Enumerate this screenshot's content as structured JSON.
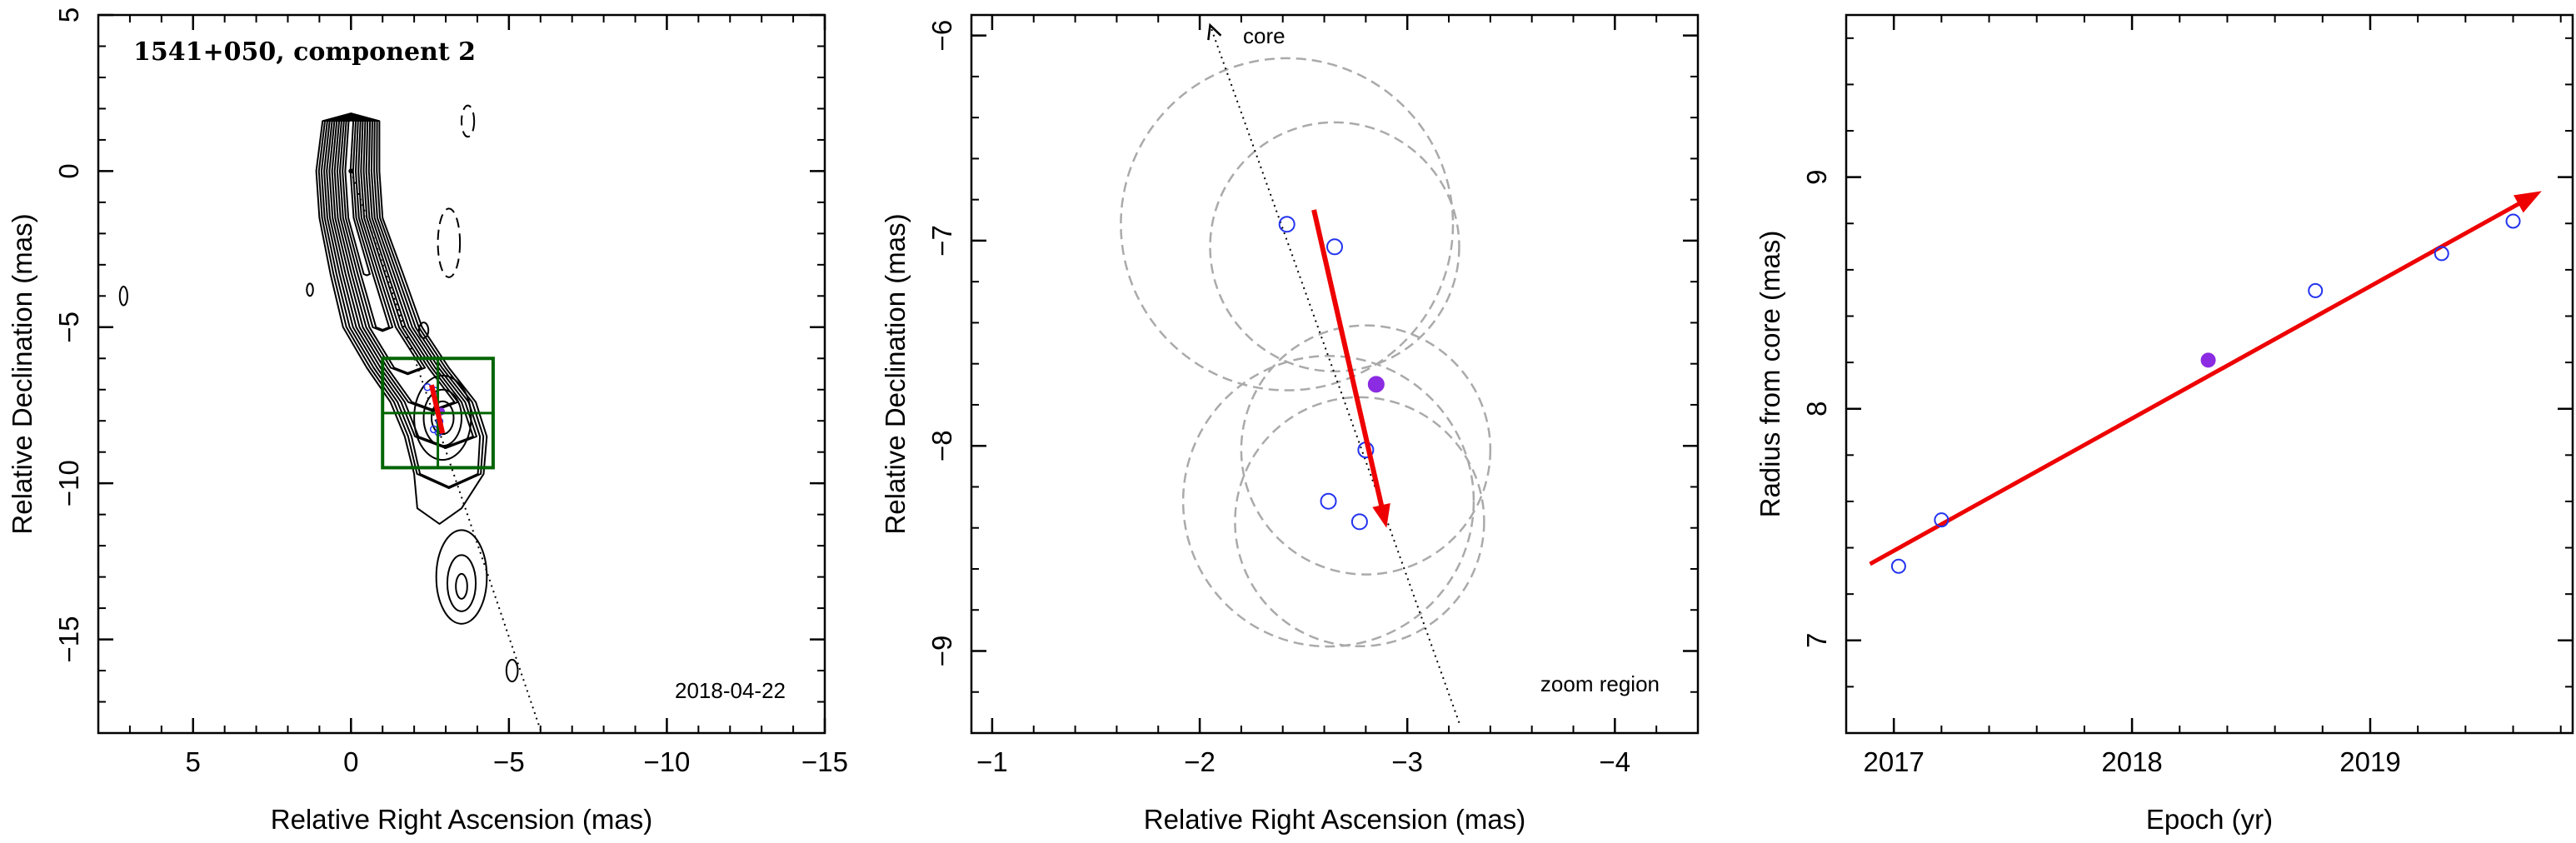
{
  "chart_data": [
    {
      "type": "scatter",
      "title": "1541+050, component 2",
      "xlabel": "Relative Right Ascension (mas)",
      "ylabel": "Relative Declination (mas)",
      "xlim": [
        8,
        -15
      ],
      "ylim": [
        -18,
        5
      ],
      "xticks": [
        5,
        0,
        -5,
        -10,
        -15
      ],
      "yticks": [
        5,
        0,
        -5,
        -10,
        -15
      ],
      "epoch_label": "2018-04-22",
      "core": [
        0,
        0
      ],
      "zoom_box": {
        "x": [
          -4.5,
          -1.0
        ],
        "y": [
          -9.5,
          -6.0
        ]
      },
      "track": {
        "start": [
          -2.55,
          -6.85
        ],
        "end": [
          -2.9,
          -8.4
        ]
      },
      "component_positions": [
        [
          -2.42,
          -6.92
        ],
        [
          -2.65,
          -7.03
        ],
        [
          -2.85,
          -7.7
        ],
        [
          -2.8,
          -8.02
        ],
        [
          -2.62,
          -8.27
        ],
        [
          -2.77,
          -8.37
        ]
      ],
      "contour_levels": 12
    },
    {
      "type": "scatter",
      "xlabel": "Relative Right Ascension (mas)",
      "ylabel": "Relative Declination (mas)",
      "xlim": [
        -0.9,
        -4.4
      ],
      "ylim": [
        -9.4,
        -5.9
      ],
      "xticks": [
        -1,
        -2,
        -3,
        -4
      ],
      "yticks": [
        -6,
        -7,
        -8,
        -9
      ],
      "core_label": "core",
      "zoom_label": "zoom region",
      "core_direction": {
        "from": [
          -3.25,
          -9.35
        ],
        "to": [
          -2.05,
          -5.95
        ]
      },
      "points": [
        {
          "x": -2.42,
          "y": -6.92,
          "radius": 0.8,
          "filled": false
        },
        {
          "x": -2.65,
          "y": -7.03,
          "radius": 0.6,
          "filled": false
        },
        {
          "x": -2.85,
          "y": -7.7,
          "radius": 0.0,
          "filled": true
        },
        {
          "x": -2.8,
          "y": -8.02,
          "radius": 0.6,
          "filled": false
        },
        {
          "x": -2.62,
          "y": -8.27,
          "radius": 0.7,
          "filled": false
        },
        {
          "x": -2.77,
          "y": -8.37,
          "radius": 0.6,
          "filled": false
        }
      ],
      "track": {
        "start": [
          -2.55,
          -6.85
        ],
        "end": [
          -2.9,
          -8.4
        ]
      }
    },
    {
      "type": "scatter",
      "xlabel": "Epoch (yr)",
      "ylabel": "Radius from core (mas)",
      "xlim": [
        2016.8,
        2019.85
      ],
      "ylim": [
        6.6,
        9.7
      ],
      "xticks": [
        2017,
        2018,
        2019
      ],
      "yticks": [
        7,
        8,
        9
      ],
      "points": [
        {
          "x": 2017.02,
          "y": 7.32,
          "filled": false
        },
        {
          "x": 2017.2,
          "y": 7.52,
          "filled": false
        },
        {
          "x": 2018.32,
          "y": 8.21,
          "filled": true
        },
        {
          "x": 2018.77,
          "y": 8.51,
          "filled": false
        },
        {
          "x": 2019.3,
          "y": 8.67,
          "filled": false
        },
        {
          "x": 2019.6,
          "y": 8.81,
          "filled": false
        }
      ],
      "fit": {
        "start": [
          2016.9,
          7.33
        ],
        "end": [
          2019.72,
          8.94
        ]
      }
    }
  ],
  "colors": {
    "vector": "#ee0000",
    "open_marker": "#2233ee",
    "filled_marker": "#8b2be2",
    "zoom_box": "#006400",
    "circles": "#aaaaaa",
    "contours": "#000000"
  }
}
